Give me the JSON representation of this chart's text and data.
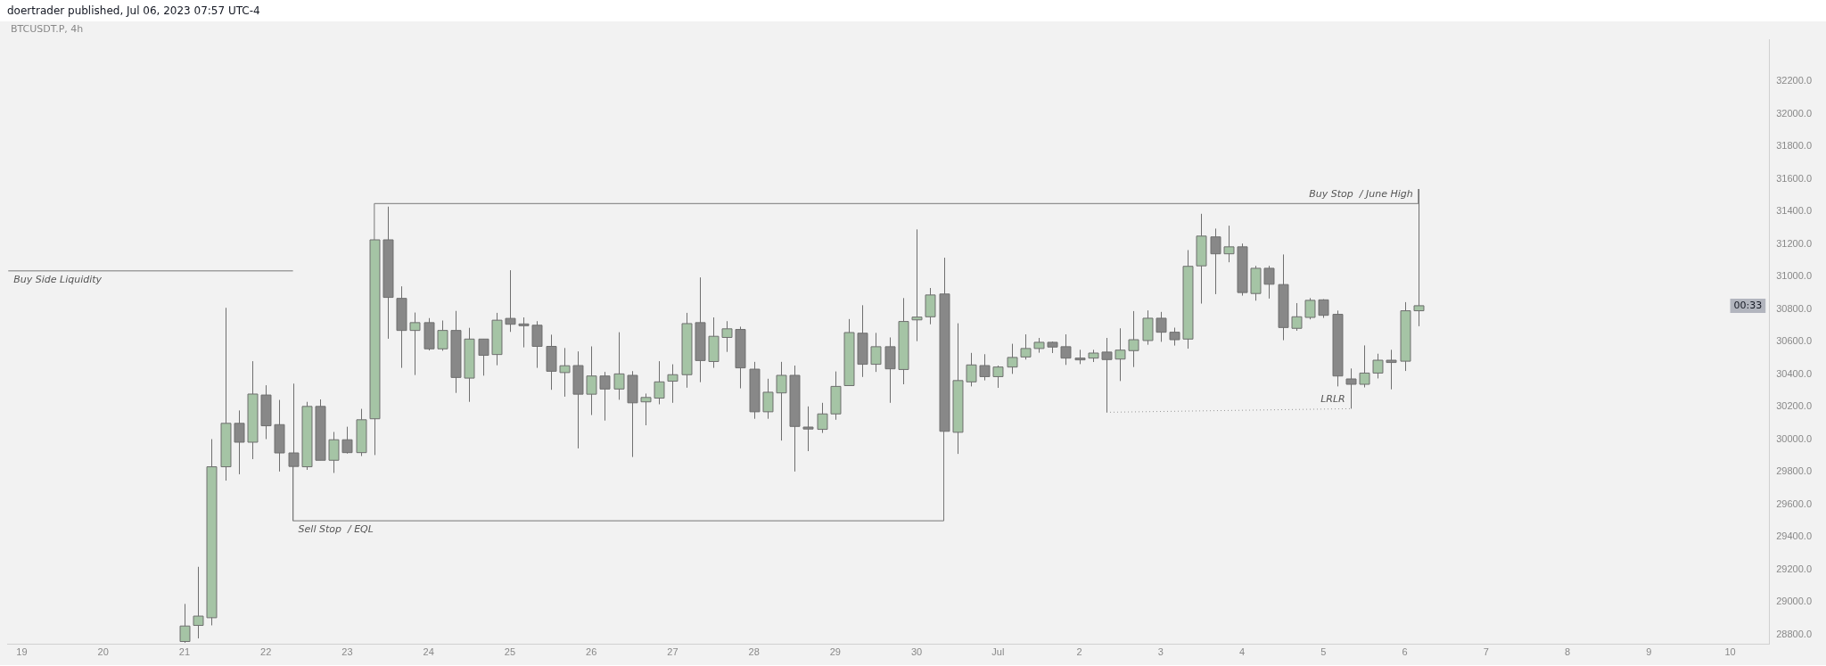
{
  "chart_data": {
    "type": "candlestick",
    "title": "doertrader published, Jul 06, 2023 07:57 UTC-4",
    "subtitle": "BTCUSDT.P, 4h",
    "x": [
      "2023-06-21T00:00",
      "2023-06-21T04:00",
      "2023-06-21T08:00",
      "2023-06-21T12:00",
      "2023-06-21T16:00",
      "2023-06-21T20:00",
      "2023-06-22T00:00",
      "2023-06-22T04:00",
      "2023-06-22T08:00",
      "2023-06-22T12:00",
      "2023-06-22T16:00",
      "2023-06-22T20:00",
      "2023-06-23T00:00",
      "2023-06-23T04:00",
      "2023-06-23T08:00",
      "2023-06-23T12:00",
      "2023-06-23T16:00",
      "2023-06-23T20:00",
      "2023-06-24T00:00",
      "2023-06-24T04:00",
      "2023-06-24T08:00",
      "2023-06-24T12:00",
      "2023-06-24T16:00",
      "2023-06-24T20:00",
      "2023-06-25T00:00",
      "2023-06-25T04:00",
      "2023-06-25T08:00",
      "2023-06-25T12:00",
      "2023-06-25T16:00",
      "2023-06-25T20:00",
      "2023-06-26T00:00",
      "2023-06-26T04:00",
      "2023-06-26T08:00",
      "2023-06-26T12:00",
      "2023-06-26T16:00",
      "2023-06-26T20:00",
      "2023-06-27T00:00",
      "2023-06-27T04:00",
      "2023-06-27T08:00",
      "2023-06-27T12:00",
      "2023-06-27T16:00",
      "2023-06-27T20:00",
      "2023-06-28T00:00",
      "2023-06-28T04:00",
      "2023-06-28T08:00",
      "2023-06-28T12:00",
      "2023-06-28T16:00",
      "2023-06-28T20:00",
      "2023-06-29T00:00",
      "2023-06-29T04:00",
      "2023-06-29T08:00",
      "2023-06-29T12:00",
      "2023-06-29T16:00",
      "2023-06-29T20:00",
      "2023-06-30T00:00",
      "2023-06-30T04:00",
      "2023-06-30T08:00",
      "2023-06-30T12:00",
      "2023-06-30T16:00",
      "2023-06-30T20:00",
      "2023-07-01T00:00",
      "2023-07-01T04:00",
      "2023-07-01T08:00",
      "2023-07-01T12:00",
      "2023-07-01T16:00",
      "2023-07-01T20:00",
      "2023-07-02T00:00",
      "2023-07-02T04:00",
      "2023-07-02T08:00",
      "2023-07-02T12:00",
      "2023-07-02T16:00",
      "2023-07-02T20:00",
      "2023-07-03T00:00",
      "2023-07-03T04:00",
      "2023-07-03T08:00",
      "2023-07-03T12:00",
      "2023-07-03T16:00",
      "2023-07-03T20:00",
      "2023-07-04T00:00",
      "2023-07-04T04:00",
      "2023-07-04T08:00",
      "2023-07-04T12:00",
      "2023-07-04T16:00",
      "2023-07-04T20:00",
      "2023-07-05T00:00",
      "2023-07-05T04:00",
      "2023-07-05T08:00",
      "2023-07-05T12:00",
      "2023-07-05T16:00",
      "2023-07-05T20:00",
      "2023-07-06T00:00",
      "2023-07-06T04:00"
    ],
    "ohlc": [
      [
        28758,
        28989,
        28750,
        28853
      ],
      [
        28857,
        29217,
        28777,
        28914
      ],
      [
        28904,
        30002,
        28857,
        29832
      ],
      [
        29832,
        30809,
        29747,
        30099
      ],
      [
        30099,
        30178,
        29786,
        29983
      ],
      [
        29983,
        30481,
        29879,
        30279
      ],
      [
        30273,
        30333,
        30002,
        30084
      ],
      [
        30091,
        30243,
        29803,
        29917
      ],
      [
        29917,
        30343,
        29834,
        29834
      ],
      [
        29832,
        30231,
        29813,
        30203
      ],
      [
        30203,
        30246,
        29872,
        29872
      ],
      [
        29872,
        30046,
        29794,
        29998
      ],
      [
        29998,
        30078,
        29913,
        29919
      ],
      [
        29919,
        30188,
        29898,
        30121
      ],
      [
        30127,
        31227,
        29904,
        31227
      ],
      [
        31227,
        31431,
        30619,
        30873
      ],
      [
        30867,
        30941,
        30440,
        30670
      ],
      [
        30670,
        30780,
        30396,
        30718
      ],
      [
        30718,
        30746,
        30547,
        30557
      ],
      [
        30557,
        30731,
        30545,
        30670
      ],
      [
        30670,
        30790,
        30286,
        30381
      ],
      [
        30377,
        30686,
        30231,
        30617
      ],
      [
        30617,
        30617,
        30392,
        30517
      ],
      [
        30522,
        30778,
        30456,
        30733
      ],
      [
        30744,
        31040,
        30661,
        30708
      ],
      [
        30710,
        30750,
        30566,
        30706
      ],
      [
        30702,
        30727,
        30440,
        30572
      ],
      [
        30572,
        30644,
        30305,
        30419
      ],
      [
        30411,
        30562,
        30263,
        30453
      ],
      [
        30454,
        30541,
        29945,
        30278
      ],
      [
        30278,
        30572,
        30150,
        30390
      ],
      [
        30390,
        30415,
        30116,
        30310
      ],
      [
        30310,
        30659,
        30244,
        30403
      ],
      [
        30394,
        30420,
        29892,
        30225
      ],
      [
        30231,
        30282,
        30087,
        30258
      ],
      [
        30254,
        30481,
        30216,
        30354
      ],
      [
        30358,
        30462,
        30225,
        30398
      ],
      [
        30398,
        30778,
        30318,
        30712
      ],
      [
        30718,
        30996,
        30352,
        30485
      ],
      [
        30479,
        30750,
        30440,
        30634
      ],
      [
        30627,
        30727,
        30538,
        30680
      ],
      [
        30676,
        30693,
        30314,
        30440
      ],
      [
        30432,
        30477,
        30127,
        30170
      ],
      [
        30170,
        30373,
        30127,
        30290
      ],
      [
        30286,
        30477,
        29993,
        30394
      ],
      [
        30394,
        30454,
        29803,
        30080
      ],
      [
        30076,
        30203,
        29928,
        30064
      ],
      [
        30062,
        30225,
        30040,
        30157
      ],
      [
        30157,
        30418,
        30121,
        30326
      ],
      [
        30331,
        30740,
        30331,
        30657
      ],
      [
        30653,
        30825,
        30384,
        30462
      ],
      [
        30462,
        30655,
        30415,
        30570
      ],
      [
        30570,
        30627,
        30225,
        30434
      ],
      [
        30430,
        30869,
        30339,
        30725
      ],
      [
        30735,
        31291,
        30604,
        30752
      ],
      [
        30754,
        30931,
        30708,
        30888
      ],
      [
        30894,
        31117,
        30050,
        30050
      ],
      [
        30044,
        30714,
        29911,
        30362
      ],
      [
        30354,
        30532,
        30326,
        30458
      ],
      [
        30454,
        30524,
        30363,
        30386
      ],
      [
        30386,
        30454,
        30317,
        30445
      ],
      [
        30445,
        30588,
        30403,
        30504
      ],
      [
        30507,
        30646,
        30491,
        30559
      ],
      [
        30559,
        30624,
        30533,
        30597
      ],
      [
        30597,
        30602,
        30531,
        30568
      ],
      [
        30570,
        30646,
        30458,
        30500
      ],
      [
        30500,
        30551,
        30463,
        30496
      ],
      [
        30500,
        30551,
        30476,
        30531
      ],
      [
        30537,
        30624,
        30167,
        30491
      ],
      [
        30494,
        30683,
        30359,
        30549
      ],
      [
        30546,
        30789,
        30445,
        30613
      ],
      [
        30608,
        30793,
        30582,
        30745
      ],
      [
        30745,
        30784,
        30600,
        30659
      ],
      [
        30659,
        30687,
        30577,
        30613
      ],
      [
        30617,
        31164,
        30558,
        31064
      ],
      [
        31067,
        31387,
        30835,
        31250
      ],
      [
        31245,
        31296,
        30893,
        31141
      ],
      [
        31141,
        31314,
        31089,
        31184
      ],
      [
        31184,
        31204,
        30884,
        30903
      ],
      [
        30897,
        31067,
        30853,
        31052
      ],
      [
        31052,
        31067,
        30866,
        30954
      ],
      [
        30952,
        31137,
        30610,
        30688
      ],
      [
        30683,
        30838,
        30668,
        30754
      ],
      [
        30750,
        30869,
        30738,
        30855
      ],
      [
        30858,
        30862,
        30747,
        30763
      ],
      [
        30769,
        30792,
        30326,
        30390
      ],
      [
        30372,
        30436,
        30189,
        30339
      ],
      [
        30339,
        30578,
        30320,
        30408
      ],
      [
        30408,
        30527,
        30375,
        30487
      ],
      [
        30487,
        30551,
        30308,
        30473
      ],
      [
        30481,
        30844,
        30421,
        30791
      ],
      [
        30791,
        31539,
        30696,
        30822
      ]
    ],
    "colors": [
      "#a5c4a5",
      "#a5c4a5",
      "#a5c4a5",
      "#a5c4a5",
      "#888888",
      "#a5c4a5",
      "#888888",
      "#888888",
      "#888888",
      "#a5c4a5",
      "#888888",
      "#a5c4a5",
      "#888888",
      "#a5c4a5",
      "#a5c4a5",
      "#888888",
      "#888888",
      "#a5c4a5",
      "#888888",
      "#a5c4a5",
      "#888888",
      "#a5c4a5",
      "#888888",
      "#a5c4a5",
      "#888888",
      "#888888",
      "#888888",
      "#888888",
      "#a5c4a5",
      "#888888",
      "#a5c4a5",
      "#888888",
      "#a5c4a5",
      "#888888",
      "#a5c4a5",
      "#a5c4a5",
      "#a5c4a5",
      "#a5c4a5",
      "#888888",
      "#a5c4a5",
      "#a5c4a5",
      "#888888",
      "#888888",
      "#a5c4a5",
      "#a5c4a5",
      "#888888",
      "#888888",
      "#a5c4a5",
      "#a5c4a5",
      "#a5c4a5",
      "#888888",
      "#a5c4a5",
      "#888888",
      "#a5c4a5",
      "#a5c4a5",
      "#a5c4a5",
      "#888888",
      "#a5c4a5",
      "#a5c4a5",
      "#888888",
      "#a5c4a5",
      "#a5c4a5",
      "#a5c4a5",
      "#a5c4a5",
      "#888888",
      "#888888",
      "#888888",
      "#a5c4a5",
      "#888888",
      "#a5c4a5",
      "#a5c4a5",
      "#a5c4a5",
      "#888888",
      "#888888",
      "#a5c4a5",
      "#a5c4a5",
      "#888888",
      "#a5c4a5",
      "#888888",
      "#a5c4a5",
      "#888888",
      "#888888",
      "#a5c4a5",
      "#a5c4a5",
      "#888888",
      "#888888",
      "#888888",
      "#a5c4a5",
      "#a5c4a5",
      "#888888",
      "#a5c4a5",
      "#a5c4a5"
    ],
    "series": [
      {
        "type": "line",
        "name": "Buy Side Liquidity",
        "x": [
          "2023-06-18T20:00",
          "2023-06-22T08:00"
        ],
        "values": [
          31036,
          31036
        ],
        "color": "#777777"
      },
      {
        "type": "line",
        "name": "Sell Stop  / EQL",
        "x": [
          "2023-06-22T08:00",
          "2023-06-22T08:00",
          "2023-06-30T08:00",
          "2023-06-30T08:00"
        ],
        "values": [
          29834,
          29500,
          29500,
          30050
        ],
        "color": "#777777"
      },
      {
        "type": "line",
        "name": "Buy Stop  / June High",
        "x": [
          "2023-06-23T08:00",
          "2023-06-23T08:00",
          "2023-07-06T04:00",
          "2023-07-06T04:00"
        ],
        "values": [
          31227,
          31450,
          31450,
          31539
        ],
        "color": "#777777"
      },
      {
        "type": "line",
        "name": "LRLR",
        "x": [
          "2023-07-02T08:00",
          "2023-07-05T08:00"
        ],
        "values": [
          30167,
          30189
        ],
        "color": "#999999",
        "line_style": "dotted"
      }
    ],
    "annotations": [
      "00:33"
    ],
    "xlim": [
      "2023-06-18T19:40",
      "2023-07-10T11:30"
    ],
    "xticks": [
      {
        "value": "2023-06-19",
        "label": "19"
      },
      {
        "value": "2023-06-20",
        "label": "20"
      },
      {
        "value": "2023-06-21",
        "label": "21"
      },
      {
        "value": "2023-06-22",
        "label": "22"
      },
      {
        "value": "2023-06-23",
        "label": "23"
      },
      {
        "value": "2023-06-24",
        "label": "24"
      },
      {
        "value": "2023-06-25",
        "label": "25"
      },
      {
        "value": "2023-06-26",
        "label": "26"
      },
      {
        "value": "2023-06-27",
        "label": "27"
      },
      {
        "value": "2023-06-28",
        "label": "28"
      },
      {
        "value": "2023-06-29",
        "label": "29"
      },
      {
        "value": "2023-06-30",
        "label": "30"
      },
      {
        "value": "2023-07-01",
        "label": "Jul"
      },
      {
        "value": "2023-07-02",
        "label": "2"
      },
      {
        "value": "2023-07-03",
        "label": "3"
      },
      {
        "value": "2023-07-04",
        "label": "4"
      },
      {
        "value": "2023-07-05",
        "label": "5"
      },
      {
        "value": "2023-07-06",
        "label": "6"
      },
      {
        "value": "2023-07-07",
        "label": "7"
      },
      {
        "value": "2023-07-08",
        "label": "8"
      },
      {
        "value": "2023-07-09",
        "label": "9"
      },
      {
        "value": "2023-07-10",
        "label": "10"
      }
    ],
    "ylim": [
      28740,
      32460
    ],
    "yticks": [
      {
        "value": 28800,
        "label": "28800.0"
      },
      {
        "value": 29000,
        "label": "29000.0"
      },
      {
        "value": 29200,
        "label": "29200.0"
      },
      {
        "value": 29400,
        "label": "29400.0"
      },
      {
        "value": 29600,
        "label": "29600.0"
      },
      {
        "value": 29800,
        "label": "29800.0"
      },
      {
        "value": 30000,
        "label": "30000.0"
      },
      {
        "value": 30200,
        "label": "30200.0"
      },
      {
        "value": 30400,
        "label": "30400.0"
      },
      {
        "value": 30600,
        "label": "30600.0"
      },
      {
        "value": 30800,
        "label": "30800.0"
      },
      {
        "value": 31000,
        "label": "31000.0"
      },
      {
        "value": 31200,
        "label": "31200.0"
      },
      {
        "value": 31400,
        "label": "31400.0"
      },
      {
        "value": 31600,
        "label": "31600.0"
      },
      {
        "value": 31800,
        "label": "31800.0"
      },
      {
        "value": 32000,
        "label": "32000.0"
      },
      {
        "value": 32200,
        "label": "32200.0"
      }
    ],
    "grid": false,
    "legend": false
  }
}
